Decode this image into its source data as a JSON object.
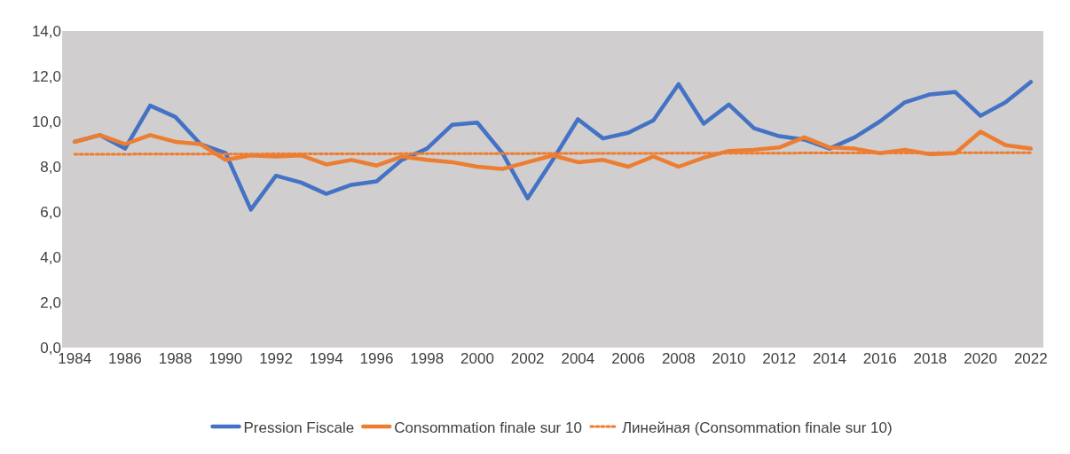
{
  "chart_data": {
    "type": "line",
    "x": [
      1984,
      1985,
      1986,
      1987,
      1988,
      1989,
      1990,
      1991,
      1992,
      1993,
      1994,
      1995,
      1996,
      1997,
      1998,
      1999,
      2000,
      2001,
      2002,
      2003,
      2004,
      2005,
      2006,
      2007,
      2008,
      2009,
      2010,
      2011,
      2012,
      2013,
      2014,
      2015,
      2016,
      2017,
      2018,
      2019,
      2020,
      2021,
      2022
    ],
    "series": [
      {
        "name": "Pression Fiscale",
        "color": "#4472c4",
        "line_style": "solid",
        "values": [
          9.1,
          9.4,
          8.8,
          10.7,
          10.2,
          9.0,
          8.6,
          6.1,
          7.6,
          7.3,
          6.8,
          7.2,
          7.35,
          8.3,
          8.8,
          9.85,
          9.95,
          8.6,
          6.6,
          8.3,
          10.1,
          9.25,
          9.5,
          10.05,
          11.65,
          9.9,
          10.75,
          9.7,
          9.35,
          9.2,
          8.8,
          9.3,
          10.0,
          10.85,
          11.2,
          11.3,
          10.25,
          10.85,
          11.75
        ]
      },
      {
        "name": "Consommation finale sur 10",
        "color": "#ed7d31",
        "line_style": "solid",
        "values": [
          9.1,
          9.4,
          9.0,
          9.4,
          9.1,
          9.0,
          8.3,
          8.5,
          8.45,
          8.5,
          8.1,
          8.3,
          8.05,
          8.45,
          8.3,
          8.2,
          8.0,
          7.9,
          8.2,
          8.5,
          8.2,
          8.3,
          8.0,
          8.45,
          8.0,
          8.4,
          8.7,
          8.75,
          8.85,
          9.3,
          8.85,
          8.8,
          8.6,
          8.75,
          8.55,
          8.6,
          9.55,
          8.95,
          8.8
        ]
      },
      {
        "name": "Линейная (Consommation finale sur 10)",
        "color": "#ed7d31",
        "line_style": "dotted",
        "type": "line",
        "x": [
          1984,
          2022
        ],
        "values": [
          8.55,
          8.62
        ]
      }
    ],
    "xlim": [
      1983.5,
      2022.5
    ],
    "xticks": [
      1984,
      1986,
      1988,
      1990,
      1992,
      1994,
      1996,
      1998,
      2000,
      2002,
      2004,
      2006,
      2008,
      2010,
      2012,
      2014,
      2016,
      2018,
      2020,
      2022
    ],
    "ylim": [
      0,
      14
    ],
    "yticks": [
      {
        "value": 0,
        "label": "0,0"
      },
      {
        "value": 2,
        "label": "2,0"
      },
      {
        "value": 4,
        "label": "4,0"
      },
      {
        "value": 6,
        "label": "6,0"
      },
      {
        "value": 8,
        "label": "8,0"
      },
      {
        "value": 10,
        "label": "10,0"
      },
      {
        "value": 12,
        "label": "12,0"
      },
      {
        "value": 14,
        "label": "14,0"
      }
    ],
    "grid": false,
    "legend": "bottom",
    "marker": "none"
  }
}
